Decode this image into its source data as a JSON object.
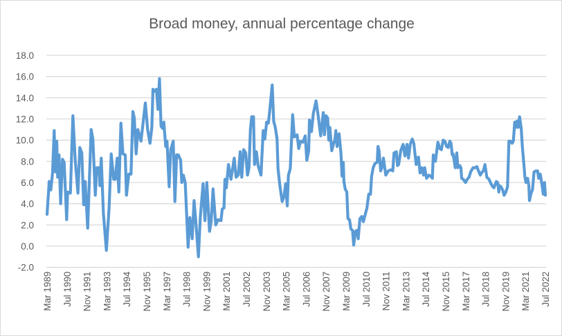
{
  "chart_data": {
    "type": "line",
    "title": "Broad money, annual percentage change",
    "xlabel": "",
    "ylabel": "",
    "ylim": [
      -2.0,
      18.0
    ],
    "y_ticks": [
      "18.0",
      "16.0",
      "14.0",
      "12.0",
      "10.0",
      "8.0",
      "6.0",
      "4.0",
      "2.0",
      "0.0",
      "-2.0"
    ],
    "x_start": "Mar 1989",
    "x_end": "Jul 2022",
    "x_unit": "months since Mar 1989",
    "x_tick_labels": [
      "Mar 1989",
      "Jul 1990",
      "Nov 1991",
      "Mar 1993",
      "Jul 1994",
      "Nov 1995",
      "Mar 1997",
      "Jul 1998",
      "Nov 1999",
      "Mar 2001",
      "Jul 2002",
      "Nov 2003",
      "Mar 2005",
      "Jul 2006",
      "Nov 2007",
      "Mar 2009",
      "Jul 2010",
      "Nov 2011",
      "Mar 2013",
      "Jul 2014",
      "Nov 2015",
      "Mar 2017",
      "Jul 2018",
      "Nov 2019",
      "Mar 2021",
      "Jul 2022"
    ],
    "x_tick_step_months": 16,
    "grid": true,
    "legend": "none",
    "series": [
      {
        "name": "Broad money, annual percentage change",
        "color": "#5b9bd5",
        "x": [
          0,
          1.7,
          3,
          4.4,
          5.7,
          6.7,
          7.8,
          8.5,
          9.6,
          10.9,
          12.4,
          13.7,
          15.7,
          16.5,
          18.7,
          20.7,
          22.6,
          24.8,
          26.3,
          27.9,
          29.4,
          30.6,
          32.6,
          35.4,
          36.8,
          38.7,
          40,
          41.9,
          42.4,
          43.5,
          45.2,
          47.6,
          49.8,
          51.5,
          53.5,
          54.7,
          56.3,
          57.6,
          59.3,
          60.9,
          62.8,
          63.7,
          65.6,
          67.4,
          68.9,
          70,
          71.5,
          72.9,
          75.4,
          78.9,
          80.7,
          82.6,
          84.1,
          85,
          86.5,
          87.8,
          89,
          90.2,
          91.5,
          92.8,
          93.7,
          95.2,
          96.3,
          98,
          99.3,
          101.3,
          102.6,
          104,
          105.4,
          107.2,
          108.1,
          109.4,
          110.9,
          113.2,
          114.6,
          116.5,
          118,
          119.3,
          121.5,
          123,
          125.2,
          126.7,
          128.2,
          130.4,
          131.7,
          133.2,
          135.4,
          137.2,
          139.6,
          140.6,
          142,
          142.8,
          143.9,
          145.6,
          147.6,
          150.2,
          151.7,
          153.5,
          155,
          156.3,
          157.8,
          159.4,
          160.9,
          162.1,
          163.2,
          164.3,
          165.7,
          166.5,
          168,
          169.4,
          171.7,
          173.5,
          174.8,
          176.3,
          177.6,
          178.5,
          180.7,
          181.9,
          183.2,
          184.6,
          185.4,
          186.9,
          188.7,
          190.2,
          191.5,
          192.8,
          193.7,
          195.2,
          197.1,
          198.5,
          200.7,
          202,
          203.5,
          205.4,
          207.2,
          208.5,
          210,
          210.6,
          212.2,
          213.7,
          215.9,
          217.4,
          219.6,
          221.7,
          222.6,
          223.9,
          225.2,
          226.1,
          227,
          228.5,
          230,
          231,
          231.8,
          232.8,
          234.4,
          235.9,
          236.8,
          237.8,
          238.3,
          239.3,
          240.6,
          241.5,
          242.8,
          243.9,
          245.2,
          246.1,
          247.6,
          248.9,
          249.8,
          251.1,
          252.6,
          253.9,
          255.4,
          256.8,
          258.2,
          259.6,
          260.5,
          261.8,
          263.2,
          265,
          265.6,
          266.5,
          267.8,
          268.7,
          270,
          271.9,
          273.9,
          276,
          277.5,
          278.5,
          280.4,
          281.3,
          282.2,
          283.9,
          285.8,
          287.3,
          288.9,
          290.1,
          291.5,
          293.1,
          294.4,
          296.3,
          297.2,
          298.1,
          299.4,
          300.9,
          302.2,
          303.1,
          304.6,
          306.5,
          307.8,
          309.3,
          310,
          311.7,
          313.7,
          315.2,
          316.5,
          318,
          319.3,
          320.7,
          322,
          323.3,
          324.3,
          325.2,
          326,
          327.6,
          328.9,
          329.8,
          331.3,
          332.2,
          332.8,
          334.1,
          335.9,
          337.2,
          338.7,
          340,
          341.9,
          343.7,
          345,
          346.3,
          347.8,
          349.3,
          350.2,
          351.5,
          353,
          354.8,
          356.3,
          357.8,
          358.7,
          360.6,
          361.7,
          362.6,
          363.3,
          364.4,
          365.7,
          366.9,
          368.3,
          369.6,
          370.7,
          372,
          373.3,
          374.3,
          375.4,
          376.3,
          377.2,
          378.1,
          379.3,
          380.6,
          381.5,
          382.6,
          383.5,
          384.4,
          385.7,
          386.7,
          387.2,
          388.5,
          389.6,
          390.9,
          392.4,
          393.7,
          394.6,
          395.9,
          397.4,
          398.3,
          399.3,
          400
        ],
        "values": [
          3.0,
          6.1,
          5.3,
          6.9,
          10.9,
          7.0,
          9.9,
          6.5,
          8.6,
          4.0,
          8.2,
          7.9,
          2.5,
          5.1,
          5.0,
          12.3,
          8.1,
          5.0,
          9.3,
          8.8,
          3.9,
          6.1,
          1.7,
          11.0,
          10.1,
          4.8,
          7.4,
          7.4,
          5.7,
          8.3,
          3.1,
          -0.4,
          3.6,
          8.7,
          6.3,
          6.3,
          8.3,
          5.1,
          11.6,
          8.7,
          8.6,
          4.8,
          6.8,
          6.8,
          12.7,
          12.1,
          8.7,
          11.0,
          9.9,
          13.5,
          11.0,
          9.7,
          11.2,
          14.8,
          14.6,
          14.8,
          12.9,
          15.8,
          11.3,
          11.1,
          11.7,
          9.4,
          9.9,
          5.6,
          9.1,
          9.9,
          4.2,
          8.6,
          8.6,
          8.1,
          6.0,
          6.7,
          6.0,
          -0.1,
          2.7,
          0.7,
          4.3,
          2.5,
          -1.0,
          2.7,
          5.9,
          2.4,
          6.0,
          1.4,
          2.3,
          5.4,
          2.0,
          2.5,
          2.4,
          3.5,
          3.6,
          6.3,
          5.5,
          7.7,
          6.3,
          8.3,
          6.5,
          6.7,
          8.9,
          6.5,
          9.1,
          8.8,
          6.7,
          7.4,
          11.0,
          12.2,
          12.2,
          7.7,
          8.9,
          7.6,
          6.7,
          10.9,
          10.1,
          11.7,
          11.6,
          12.5,
          15.2,
          11.8,
          11.2,
          10.1,
          7.3,
          5.7,
          4.2,
          4.7,
          5.9,
          3.8,
          6.7,
          7.3,
          12.4,
          10.3,
          10.5,
          9.2,
          9.9,
          9.8,
          10.4,
          8.1,
          9.0,
          11.9,
          10.8,
          12.5,
          13.7,
          12.5,
          10.4,
          12.6,
          10.5,
          12.3,
          12.1,
          10.0,
          11.2,
          9.0,
          9.7,
          10.0,
          10.9,
          9.4,
          10.6,
          8.8,
          6.6,
          7.9,
          6.1,
          5.4,
          5.1,
          2.6,
          2.5,
          1.6,
          1.5,
          0.1,
          1.4,
          1.5,
          0.7,
          2.6,
          2.8,
          2.3,
          3.0,
          3.6,
          4.9,
          4.9,
          6.6,
          7.4,
          7.8,
          7.9,
          9.4,
          9.0,
          7.1,
          7.4,
          8.3,
          6.7,
          7.1,
          7.2,
          7.1,
          8.8,
          8.9,
          7.6,
          7.7,
          9.0,
          9.6,
          8.5,
          9.6,
          8.3,
          9.6,
          10.1,
          9.7,
          7.7,
          8.3,
          8.4,
          6.9,
          7.4,
          6.7,
          7.4,
          6.4,
          6.7,
          6.6,
          6.4,
          8.6,
          8.0,
          9.8,
          9.2,
          9.1,
          10.0,
          9.9,
          9.4,
          9.3,
          9.9,
          9.7,
          8.6,
          8.7,
          7.4,
          8.8,
          7.4,
          7.6,
          7.4,
          6.4,
          6.3,
          6.0,
          6.3,
          6.5,
          7.0,
          7.4,
          7.4,
          7.5,
          7.1,
          6.7,
          7.0,
          7.1,
          7.7,
          6.5,
          6.3,
          5.9,
          5.6,
          5.5,
          6.1,
          6.0,
          5.1,
          5.7,
          5.6,
          5.3,
          4.8,
          5.1,
          5.6,
          9.9,
          9.9,
          9.7,
          9.9,
          11.7,
          11.2,
          11.8,
          11.2,
          12.2,
          11.1,
          9.4,
          7.9,
          6.6,
          6.0,
          6.4,
          5.7,
          4.3,
          5.0,
          5.3,
          7.0,
          7.1,
          7.1,
          6.4,
          6.8,
          5.7,
          4.9,
          6.0,
          4.8
        ]
      }
    ]
  }
}
